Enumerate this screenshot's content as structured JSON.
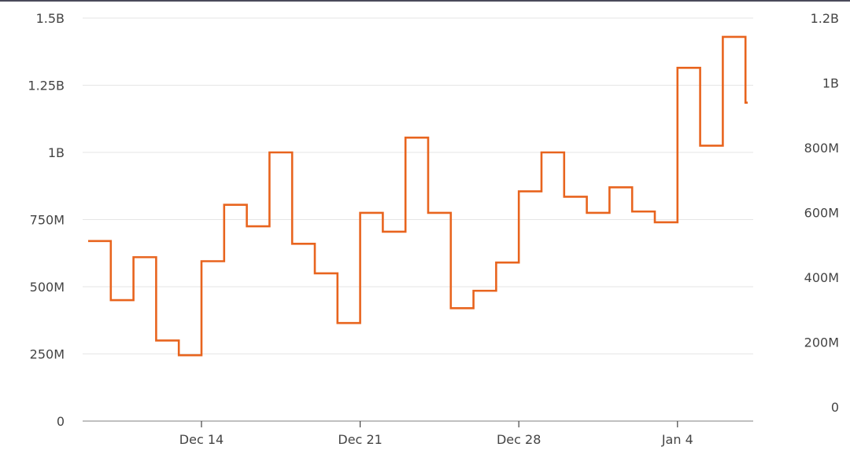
{
  "chart_data": {
    "type": "line",
    "step": true,
    "title": "",
    "xlabel": "",
    "ylabel": "",
    "y_left": {
      "ticks": [
        0,
        250000000,
        500000000,
        750000000,
        1000000000,
        1250000000,
        1500000000
      ],
      "tick_labels": [
        "0",
        "250M",
        "500M",
        "750M",
        "1B",
        "1.25B",
        "1.5B"
      ],
      "ylim": [
        0,
        1500000000
      ]
    },
    "y_right": {
      "ticks": [
        0,
        200000000,
        400000000,
        600000000,
        800000000,
        1000000000,
        1200000000
      ],
      "tick_labels": [
        "0",
        "200M",
        "400M",
        "600M",
        "800M",
        "1B",
        "1.2B"
      ],
      "ylim": [
        0,
        1200000000
      ]
    },
    "x_ticks": [
      {
        "date": "2021-12-14",
        "label": "Dec 14"
      },
      {
        "date": "2021-12-21",
        "label": "Dec 21"
      },
      {
        "date": "2021-12-28",
        "label": "Dec 28"
      },
      {
        "date": "2022-01-04",
        "label": "Jan 4"
      }
    ],
    "xlim": [
      "2021-12-09",
      "2022-01-06"
    ],
    "grid": true,
    "series": [
      {
        "color": "#e8641e",
        "axis": "left",
        "points": [
          {
            "date": "2021-12-09",
            "value": 670000000
          },
          {
            "date": "2021-12-10",
            "value": 450000000
          },
          {
            "date": "2021-12-11",
            "value": 610000000
          },
          {
            "date": "2021-12-12",
            "value": 300000000
          },
          {
            "date": "2021-12-13",
            "value": 245000000
          },
          {
            "date": "2021-12-14",
            "value": 595000000
          },
          {
            "date": "2021-12-15",
            "value": 805000000
          },
          {
            "date": "2021-12-16",
            "value": 725000000
          },
          {
            "date": "2021-12-17",
            "value": 1000000000
          },
          {
            "date": "2021-12-18",
            "value": 660000000
          },
          {
            "date": "2021-12-19",
            "value": 550000000
          },
          {
            "date": "2021-12-20",
            "value": 365000000
          },
          {
            "date": "2021-12-21",
            "value": 775000000
          },
          {
            "date": "2021-12-22",
            "value": 705000000
          },
          {
            "date": "2021-12-23",
            "value": 1055000000
          },
          {
            "date": "2021-12-24",
            "value": 775000000
          },
          {
            "date": "2021-12-25",
            "value": 420000000
          },
          {
            "date": "2021-12-26",
            "value": 485000000
          },
          {
            "date": "2021-12-27",
            "value": 590000000
          },
          {
            "date": "2021-12-28",
            "value": 855000000
          },
          {
            "date": "2021-12-29",
            "value": 1000000000
          },
          {
            "date": "2021-12-30",
            "value": 835000000
          },
          {
            "date": "2021-12-31",
            "value": 775000000
          },
          {
            "date": "2022-01-01",
            "value": 870000000
          },
          {
            "date": "2022-01-02",
            "value": 780000000
          },
          {
            "date": "2022-01-03",
            "value": 740000000
          },
          {
            "date": "2022-01-04",
            "value": 1315000000
          },
          {
            "date": "2022-01-05",
            "value": 1025000000
          },
          {
            "date": "2022-01-06",
            "value": 1430000000
          },
          {
            "date": "2022-01-07",
            "value": 1185000000
          }
        ]
      }
    ]
  }
}
